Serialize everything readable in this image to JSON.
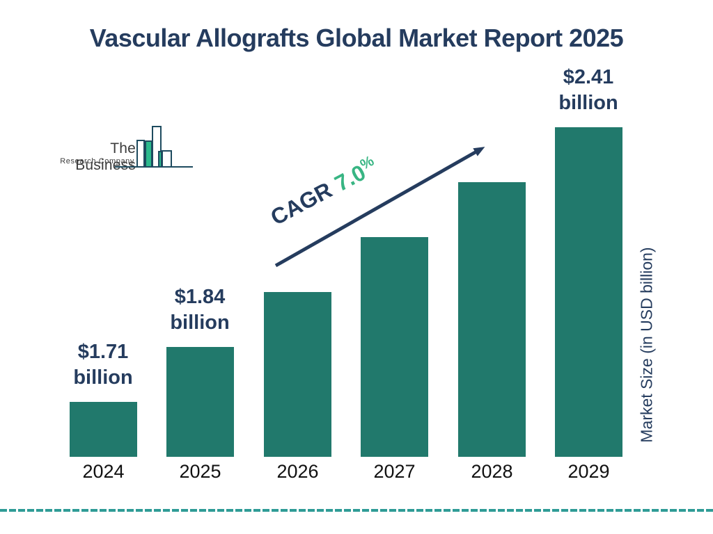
{
  "page": {
    "title": "Vascular Allografts Global Market Report 2025"
  },
  "logo": {
    "name_line1": "The Business",
    "name_line2": "Research Company"
  },
  "annotation": {
    "cagr_label": "CAGR",
    "cagr_value": "7.0",
    "cagr_unit": "%"
  },
  "axis": {
    "y_label": "Market Size (in USD billion)"
  },
  "colors": {
    "navy": "#253C5E",
    "bar_teal": "#21796C",
    "accent_green": "#38B583",
    "logo_outline": "#1E4B5F",
    "logo_green": "#2CBA8D",
    "dash_teal": "#2F9C96",
    "year_text": "#111111",
    "logo_text": "#3C3C3C"
  },
  "chart_data": {
    "type": "bar",
    "title": "Vascular Allografts Global Market Report 2025",
    "categories": [
      "2024",
      "2025",
      "2026",
      "2027",
      "2028",
      "2029"
    ],
    "values": [
      1.71,
      1.84,
      1.97,
      2.11,
      2.25,
      2.41
    ],
    "unit": "USD billion",
    "value_labels": {
      "2024": [
        "$1.71",
        "billion"
      ],
      "2025": [
        "$1.84",
        "billion"
      ],
      "2029": [
        "$2.41",
        "billion"
      ]
    },
    "ylabel": "Market Size (in USD billion)",
    "annotation": "CAGR 7.0%",
    "cagr_percent": 7.0,
    "legend": "none",
    "grid": false,
    "bar_color": "#21796C"
  }
}
